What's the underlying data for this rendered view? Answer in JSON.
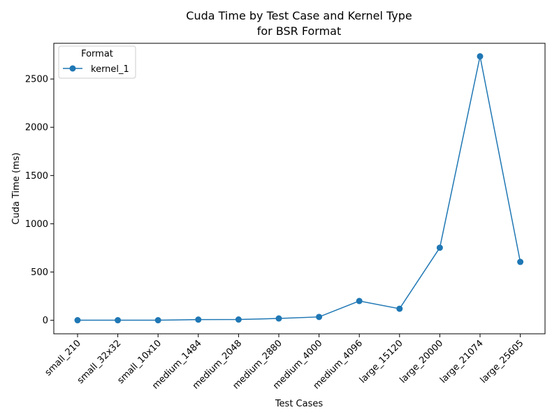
{
  "chart_data": {
    "type": "line",
    "title": "Cuda Time by Test Case and Kernel Type",
    "subtitle": "for BSR Format",
    "xlabel": "Test Cases",
    "ylabel": "Cuda Time (ms)",
    "categories": [
      "small_210",
      "small_32x32",
      "small_10x10",
      "medium_1484",
      "medium_2048",
      "medium_2880",
      "medium_4000",
      "medium_4096",
      "large_15120",
      "large_20000",
      "large_21074",
      "large_25605"
    ],
    "series": [
      {
        "name": "kernel_1",
        "color": "#1f77b4",
        "marker": "circle",
        "values": [
          1,
          1,
          1,
          7,
          8,
          19,
          35,
          200,
          120,
          752,
          2735,
          605
        ]
      }
    ],
    "ylim": [
      -140,
      2870
    ],
    "yticks": [
      0,
      500,
      1000,
      1500,
      2000,
      2500
    ],
    "grid": false,
    "legend": {
      "title": "Format",
      "position": "top-left"
    }
  }
}
